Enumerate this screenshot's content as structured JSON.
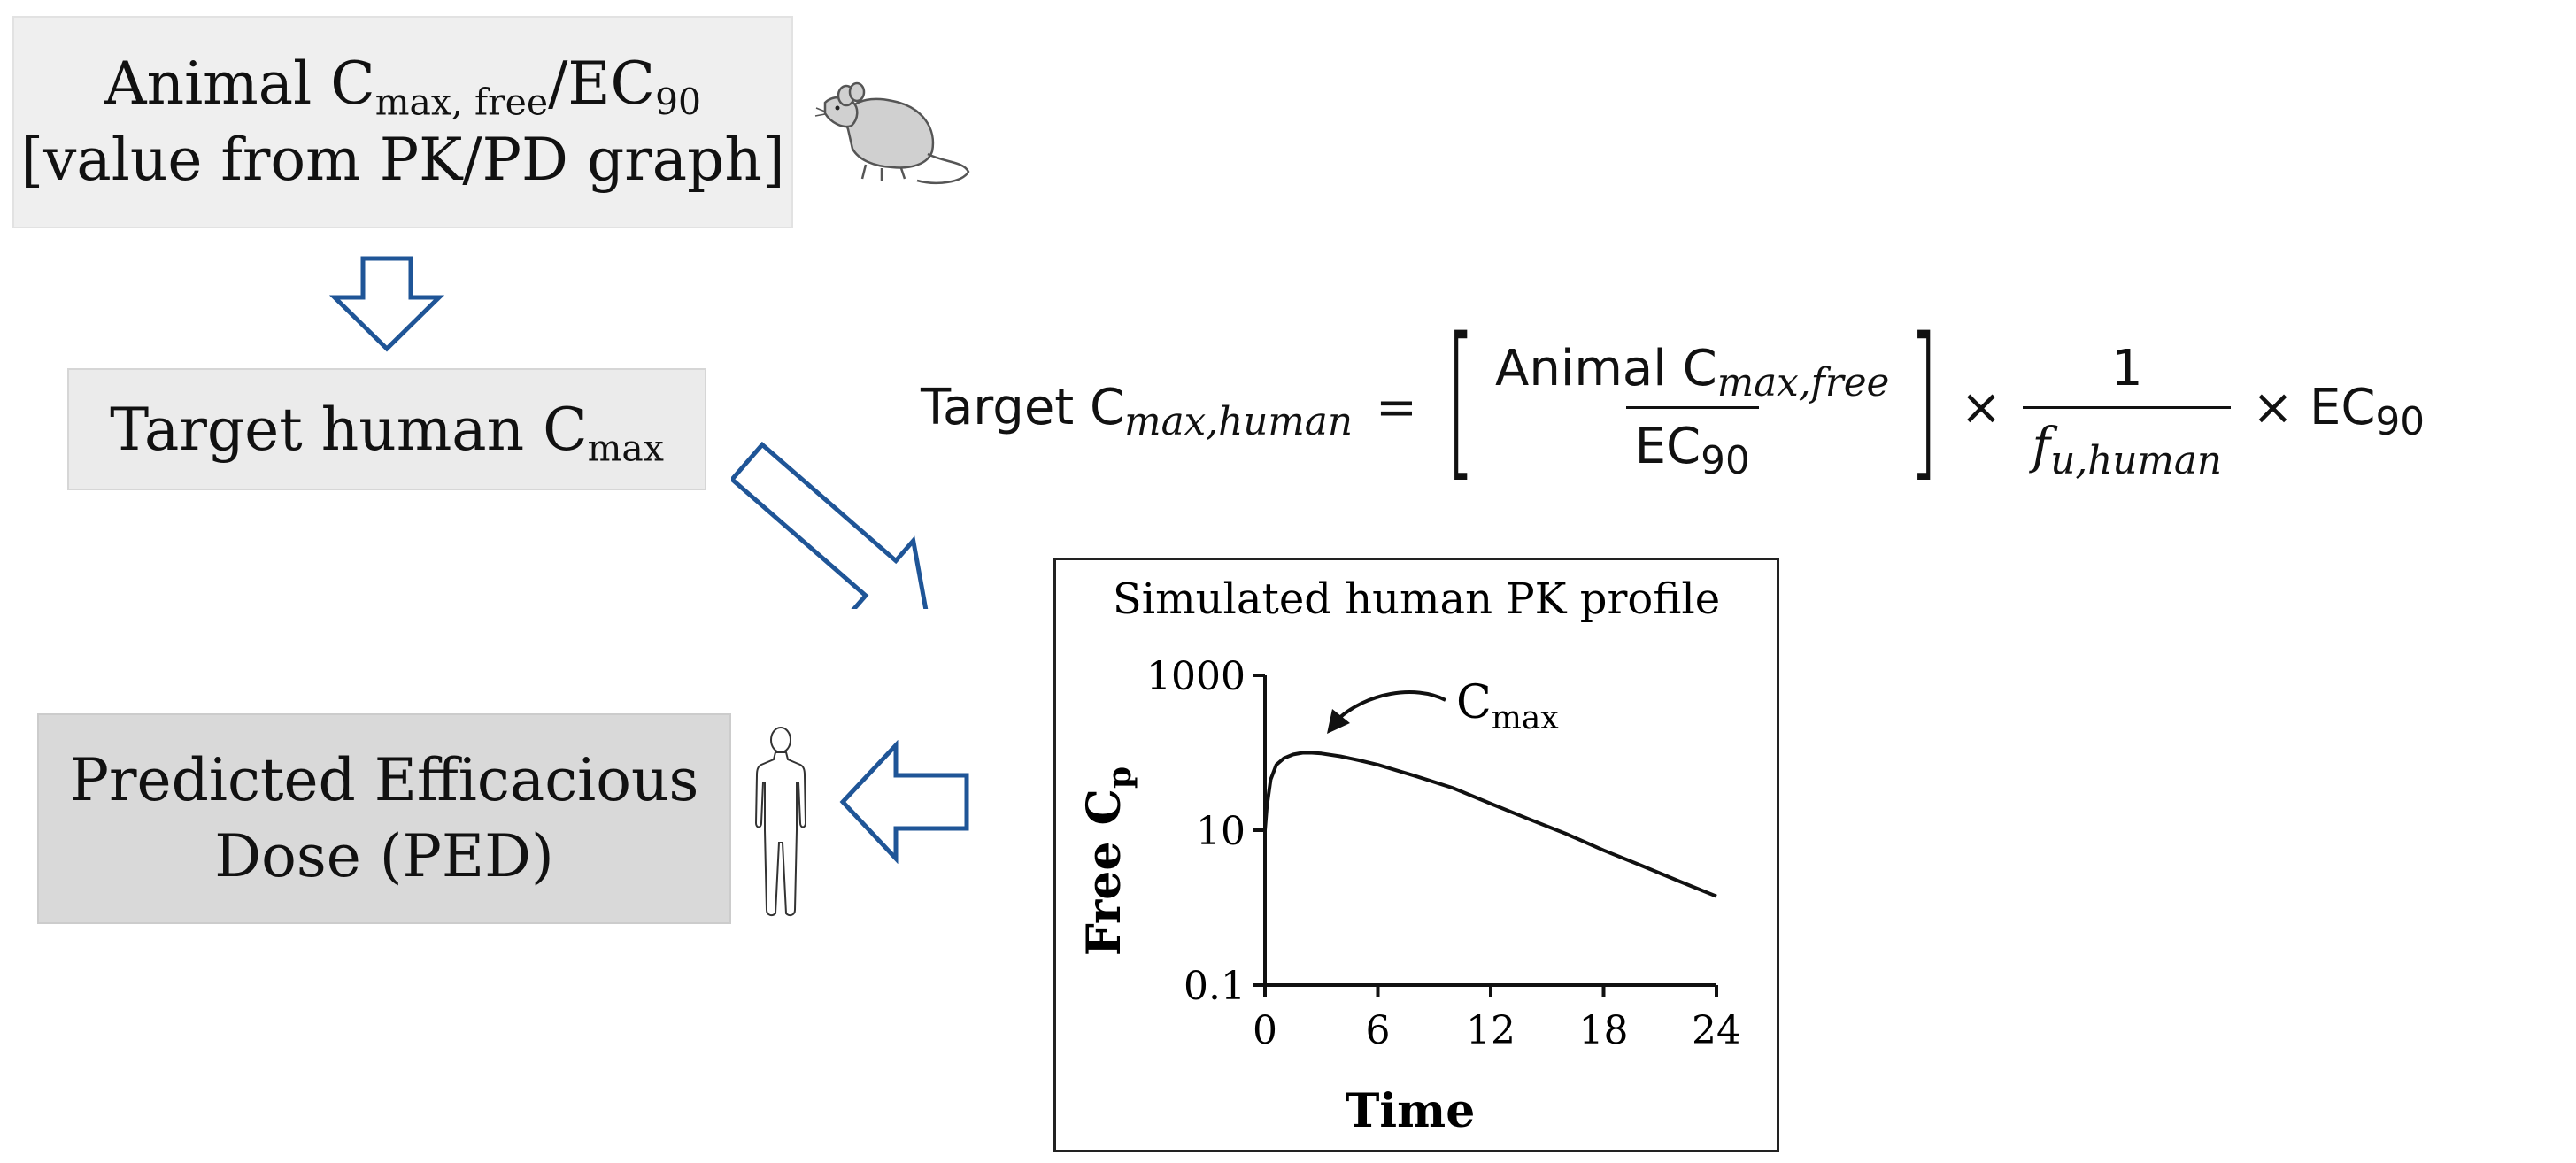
{
  "boxes": {
    "animal_ratio": {
      "line1_prefix": "Animal C",
      "line1_sub": "max, free",
      "line1_mid": "/EC",
      "line1_sub2": "90",
      "line2": "[value from PK/PD graph]"
    },
    "target_human": {
      "text": "Target human C",
      "sub": "max"
    },
    "ped": {
      "line1": "Predicted Efficacious",
      "line2": "Dose (PED)"
    }
  },
  "formula": {
    "lhs_prefix": "Target C",
    "lhs_sub": "max,human",
    "equals": "=",
    "num1_prefix": "Animal C",
    "num1_sub": "max,free",
    "den1_prefix": "EC",
    "den1_sub": "90",
    "times": "×",
    "num2": "1",
    "den2_prefix": "f",
    "den2_sub": "u,human",
    "tail_prefix": "EC",
    "tail_sub": "90"
  },
  "icons": {
    "animal": "mouse-icon",
    "human": "human-figure-icon",
    "arrow_color": "#1f5597"
  },
  "chart_data": {
    "type": "line",
    "title": "Simulated human PK profile",
    "xlabel": "Time",
    "ylabel_prefix": "Free C",
    "ylabel_sub": "p",
    "yscale": "log",
    "xlim": [
      0,
      24
    ],
    "ylim": [
      0.1,
      1000
    ],
    "xticks": [
      0,
      6,
      12,
      18,
      24
    ],
    "yticks": [
      0.1,
      10,
      1000
    ],
    "ytick_labels": [
      "0.1",
      "10",
      "1000"
    ],
    "annotation": {
      "prefix": "C",
      "sub": "max"
    },
    "series": [
      {
        "x": [
          0,
          0.1,
          0.3,
          0.6,
          1,
          1.5,
          2,
          2.5,
          3,
          4,
          5,
          6,
          8,
          10,
          12,
          14,
          16,
          18,
          20,
          22,
          24
        ],
        "y": [
          10,
          20,
          45,
          70,
          85,
          95,
          100,
          100,
          98,
          90,
          80,
          70,
          50,
          35,
          22,
          14,
          9,
          5.5,
          3.5,
          2.2,
          1.4
        ]
      }
    ]
  }
}
